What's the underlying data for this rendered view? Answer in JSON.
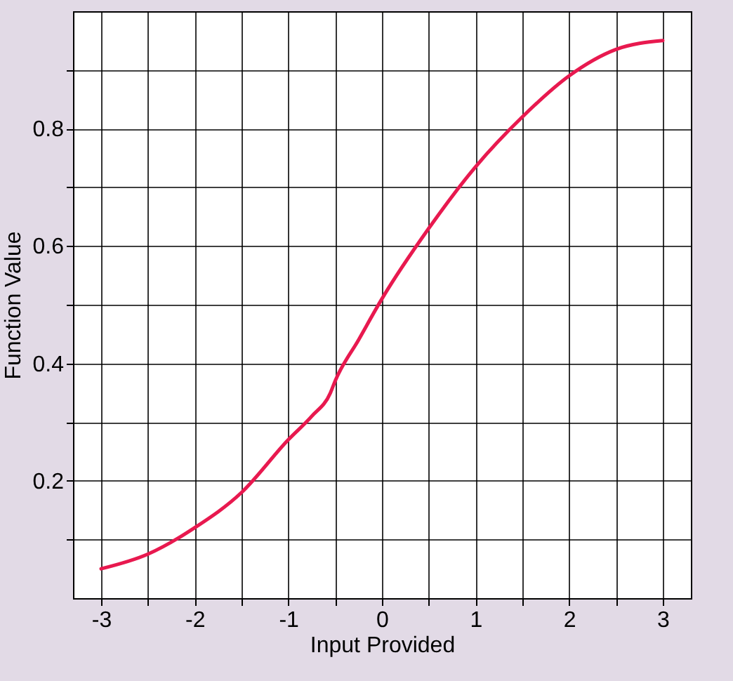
{
  "chart_data": {
    "type": "line",
    "xlabel": "Input Provided",
    "ylabel": "Function Value",
    "x": [
      -3,
      -2.5,
      -2,
      -1.5,
      -1,
      -0.75,
      -0.55,
      -0.5,
      -0.25,
      0,
      0.5,
      1,
      1.5,
      2,
      2.5,
      3
    ],
    "series": [
      {
        "color": "#e8194f",
        "values": [
          0.05,
          0.075,
          0.12,
          0.18,
          0.27,
          0.31,
          0.35,
          0.37,
          0.44,
          0.51,
          0.63,
          0.735,
          0.82,
          0.89,
          0.935,
          0.95
        ]
      }
    ],
    "xlim": [
      -3.3,
      3.3
    ],
    "ylim": [
      0,
      1
    ],
    "xticks": [
      -3,
      {
        "value": -2.5,
        "label": null
      },
      -2,
      {
        "value": -1.5,
        "label": null
      },
      -1,
      {
        "value": -0.5,
        "label": null
      },
      0,
      {
        "value": 0.5,
        "label": null
      },
      1,
      {
        "value": 1.5,
        "label": null
      },
      2,
      {
        "value": 2.5,
        "label": null
      },
      3
    ],
    "yticks": [
      {
        "value": 0.1,
        "label": null
      },
      0.2,
      {
        "value": 0.3,
        "label": null
      },
      0.4,
      {
        "value": 0.5,
        "label": null
      },
      0.6,
      {
        "value": 0.7,
        "label": null
      },
      0.8,
      {
        "value": 0.9,
        "label": null
      }
    ],
    "grid": true,
    "marker": "none",
    "line_style": "solid"
  }
}
